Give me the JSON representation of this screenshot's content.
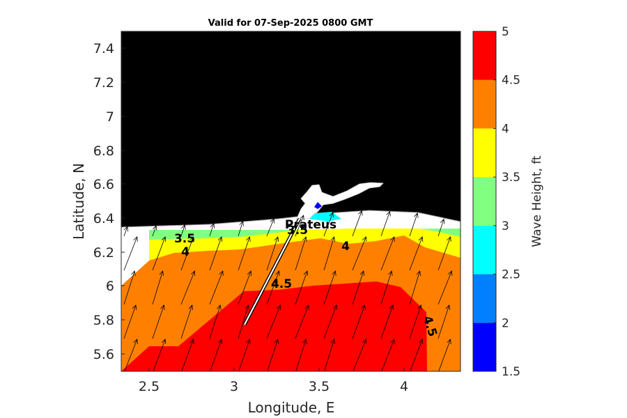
{
  "chart_data": {
    "type": "filled-contour map",
    "title": "Valid for 07-Sep-2025 0800 GMT",
    "xlabel": "Longitude, E",
    "ylabel": "Latitude, N",
    "xlim": [
      2.33,
      4.33
    ],
    "ylim": [
      5.49,
      7.5
    ],
    "xticks": [
      "2.5",
      "3",
      "3.5",
      "4"
    ],
    "yticks": [
      "5.6",
      "5.8",
      "6",
      "6.2",
      "6.4",
      "6.6",
      "6.8",
      "7",
      "7.2",
      "7.4"
    ],
    "colorbar": {
      "label": "Wave Height, ft",
      "ticks": [
        "1.5",
        "2",
        "2.5",
        "3",
        "3.5",
        "4",
        "4.5",
        "5"
      ],
      "levels": [
        1.5,
        2,
        2.5,
        3,
        3.5,
        4,
        4.5,
        5
      ],
      "colors": [
        "#0000ff",
        "#0080ff",
        "#00ffff",
        "#80ff80",
        "#ffff00",
        "#ff8000",
        "#ff0000"
      ]
    },
    "land_color": "#000000",
    "no_data_color": "#ffffff",
    "contour_labels": [
      {
        "text": "3.5",
        "x": 2.63,
        "y": 6.27
      },
      {
        "text": "4",
        "x": 2.69,
        "y": 6.2
      },
      {
        "text": "4",
        "x": 3.66,
        "y": 6.23
      },
      {
        "text": "4.5",
        "x": 3.32,
        "y": 6.01
      },
      {
        "text": "4.5",
        "x": 4.16,
        "y": 5.77
      },
      {
        "text": "3.5",
        "x": 3.31,
        "y": 6.33
      }
    ],
    "station": {
      "name": "Prateus",
      "lon": 3.42,
      "lat": 6.44
    },
    "transect": {
      "start": [
        3.4,
        6.38
      ],
      "end": [
        3.07,
        5.78
      ]
    },
    "wave_direction_arrows": "toward north-northeast"
  }
}
